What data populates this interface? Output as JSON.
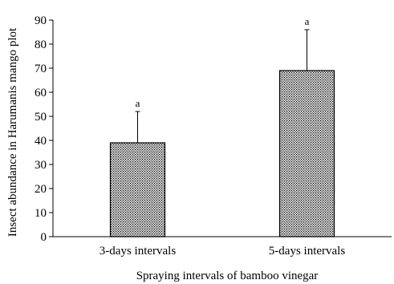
{
  "chart_data": {
    "type": "bar",
    "categories": [
      "3-days intervals",
      "5-days intervals"
    ],
    "values": [
      39,
      69
    ],
    "error_upper": [
      52,
      86
    ],
    "data_labels": [
      "a",
      "a"
    ],
    "title": "",
    "xlabel": "Spraying intervals of bamboo vinegar",
    "ylabel": "Insect abundance in Harumanis mango plot",
    "ylim": [
      0,
      90
    ],
    "yticks": [
      0,
      10,
      20,
      30,
      40,
      50,
      60,
      70,
      80,
      90
    ],
    "grid": false,
    "bar_fill": "dotted-pattern",
    "colors": {
      "bar_fill": "#e8e8e8",
      "bar_dots": "#000000",
      "bar_edge": "#000000",
      "axis": "#000000"
    }
  }
}
